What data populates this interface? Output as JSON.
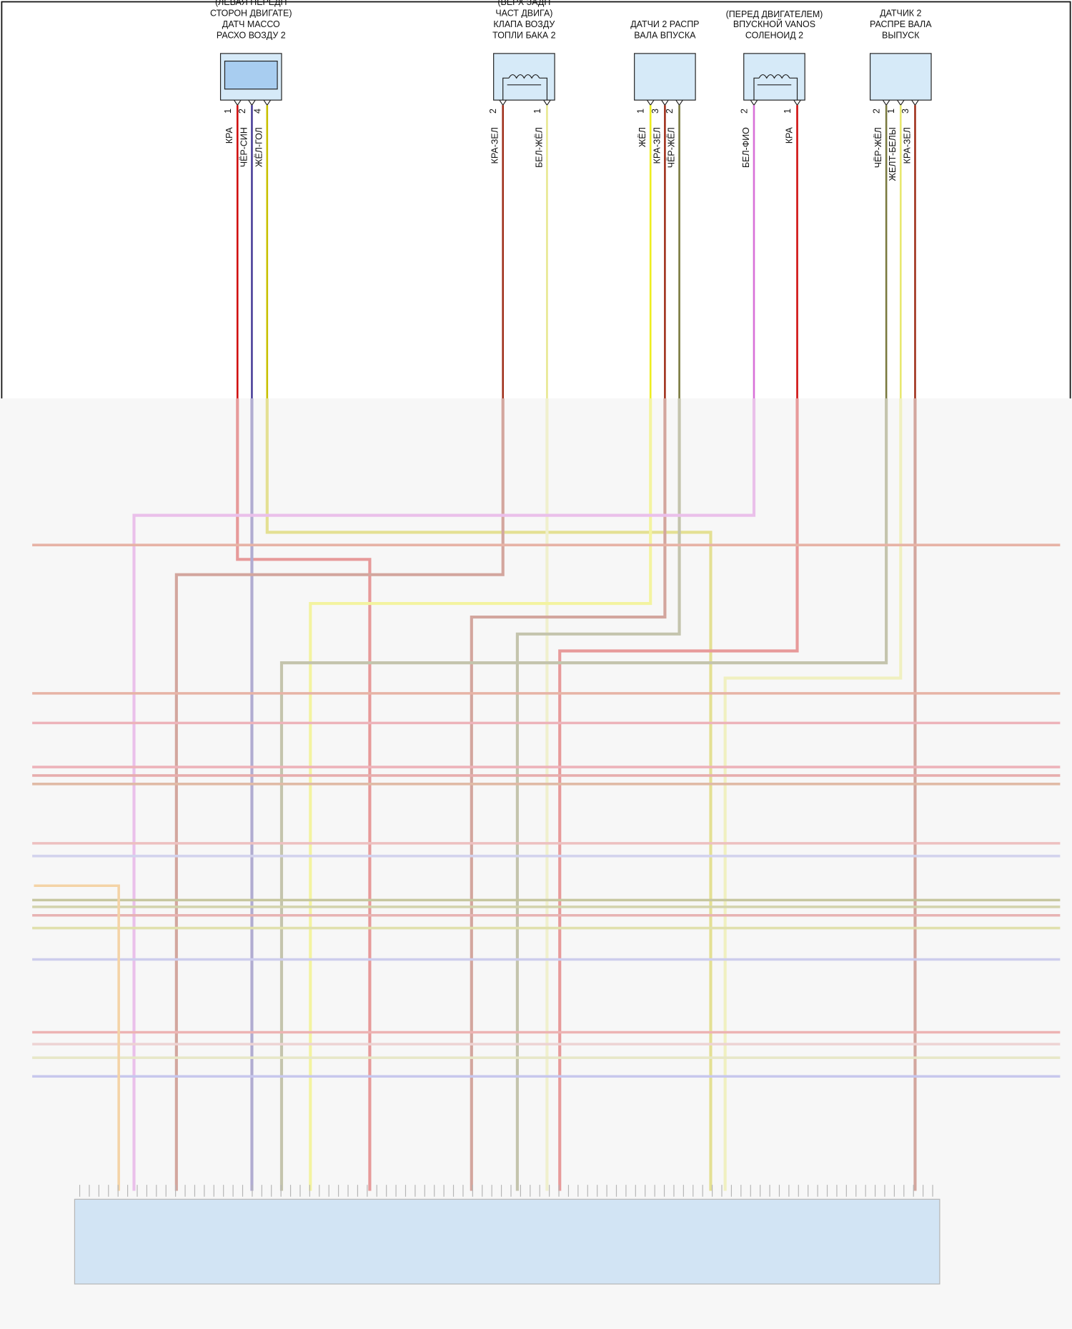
{
  "note": "(ПЕРЕД ДВИГАТЕЛЕМ)",
  "components": [
    {
      "label": [
        "(ЛЕВАЯ ПЕРЕДН",
        "СТОРОН ДВИГАТЕ)",
        "ДАТЧ МАССО",
        "РАСХО ВОЗДУ 2"
      ],
      "pins": [
        {
          "pin": "1",
          "wire": "КРА"
        },
        {
          "pin": "2",
          "wire": "ЧЁР-СИН"
        },
        {
          "pin": "4",
          "wire": "ЖЁЛ-ГОЛ"
        }
      ]
    },
    {
      "label": [
        "(ВЕРХ ЗАДН",
        "ЧАСТ ДВИГА)",
        "КЛАПА ВОЗДУ",
        "ТОПЛИ БАКА 2"
      ],
      "pins": [
        {
          "pin": "2",
          "wire": "КРА-ЗЕЛ"
        },
        {
          "pin": "1",
          "wire": "БЕЛ-ЖЁЛ"
        }
      ]
    },
    {
      "label": [
        "ДАТЧИ 2 РАСПР",
        "ВАЛА ВПУСКА"
      ],
      "pins": [
        {
          "pin": "1",
          "wire": "ЖЁЛ"
        },
        {
          "pin": "3",
          "wire": "КРА-ЗЕЛ"
        },
        {
          "pin": "2",
          "wire": "ЧЁР-ЖЁЛ"
        }
      ]
    },
    {
      "label": [
        "ВПУСКНОЙ VANOS",
        "СОЛЕНОИД 2"
      ],
      "pins": [
        {
          "pin": "2",
          "wire": "БЕЛ-ФИО"
        },
        {
          "pin": "1",
          "wire": "КРА"
        }
      ]
    },
    {
      "label": [
        "ДАТЧИК 2",
        "РАСПРЕ ВАЛА",
        "ВЫПУСК"
      ],
      "pins": [
        {
          "pin": "2",
          "wire": "ЧЁР-ЖЁЛ"
        },
        {
          "pin": "1",
          "wire": "ЖЕЛТ-БЕЛЫ"
        },
        {
          "pin": "3",
          "wire": "КРА-ЗЕЛ"
        }
      ]
    }
  ]
}
